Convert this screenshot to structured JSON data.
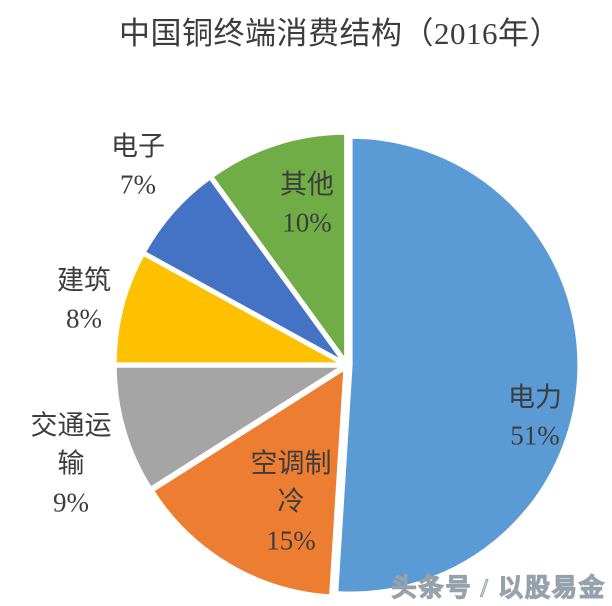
{
  "page": {
    "background_color": "#ffffff"
  },
  "chart_data": {
    "type": "pie",
    "title": "中国铜终端消费结构（2016年）",
    "start_angle_deg": 0,
    "direction": "clockwise",
    "legend": "none",
    "slice_border_color": "#ffffff",
    "label_text_color": "#3d3d3d",
    "slices": [
      {
        "name": "电力",
        "value_pct": 51,
        "color": "#5B9BD5",
        "label": "电力",
        "label_value": "51%",
        "label_placement": "inside"
      },
      {
        "name": "空调制冷",
        "value_pct": 15,
        "color": "#ED7D31",
        "label": "空调制冷",
        "label_value": "15%",
        "label_placement": "inside"
      },
      {
        "name": "交通运输",
        "value_pct": 9,
        "color": "#A5A5A5",
        "label": "交通运输",
        "label_value": "9%",
        "label_placement": "outside"
      },
      {
        "name": "建筑",
        "value_pct": 8,
        "color": "#FFC000",
        "label": "建筑",
        "label_value": "8%",
        "label_placement": "outside"
      },
      {
        "name": "电子",
        "value_pct": 7,
        "color": "#4472C4",
        "label": "电子",
        "label_value": "7%",
        "label_placement": "outside"
      },
      {
        "name": "其他",
        "value_pct": 10,
        "color": "#70AD47",
        "label": "其他",
        "label_value": "10%",
        "label_placement": "inside"
      }
    ]
  },
  "watermark": {
    "text": "头条号 / 以股易金"
  }
}
